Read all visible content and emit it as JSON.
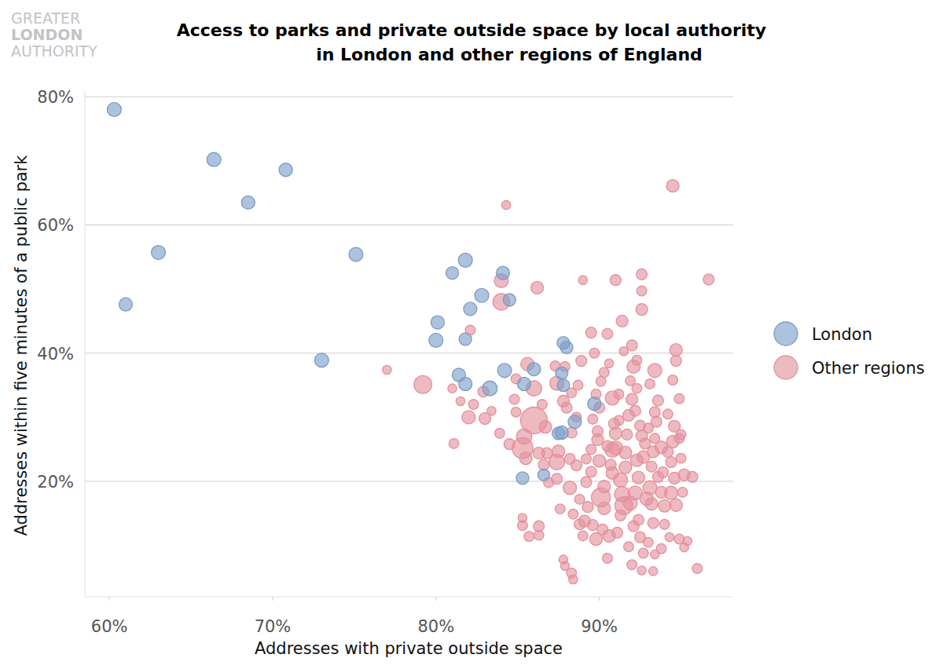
{
  "chart_data": {
    "type": "scatter",
    "logo": "GREATER\nLONDON\nAUTHORITY",
    "title": "Access to parks and private outside space by local authority\nin London and other regions of England",
    "x_label": "Addresses with private outside space",
    "y_label": "Addresses within five minutes of a public park",
    "xlim": [
      58.5,
      98.2
    ],
    "ylim": [
      2,
      81
    ],
    "xticks": [
      {
        "value": 60,
        "label": "60%"
      },
      {
        "value": 70,
        "label": "70%"
      },
      {
        "value": 80,
        "label": "80%"
      },
      {
        "value": 90,
        "label": "90%"
      }
    ],
    "yticks": [
      {
        "value": 20,
        "label": "20%"
      },
      {
        "value": 40,
        "label": "40%"
      },
      {
        "value": 60,
        "label": "60%"
      },
      {
        "value": 80,
        "label": "80%"
      }
    ],
    "grid": true,
    "legend": "right",
    "marker": "circle",
    "series": [
      {
        "name": "London",
        "color": "#7b9cc6",
        "x": [
          60.3,
          61,
          63,
          66.4,
          68.5,
          70.8,
          73,
          75.1,
          80,
          80.1,
          81,
          81.8,
          81.8,
          81.4,
          81.8,
          82.1,
          82.8,
          83.3,
          84.1,
          84.2,
          84.5,
          85.4,
          86,
          85.3,
          86.6,
          87.8,
          88,
          87.7,
          87.8,
          87.7,
          88.5,
          89.7,
          87.5
        ],
        "values": [
          78,
          47.6,
          55.7,
          70.2,
          63.5,
          68.6,
          38.9,
          55.4,
          42,
          44.8,
          52.5,
          54.5,
          42.2,
          36.6,
          35.2,
          46.9,
          49,
          34.5,
          52.5,
          37.3,
          48.3,
          35.2,
          37.5,
          20.5,
          21,
          41.6,
          40.9,
          36.9,
          35,
          27.6,
          29.3,
          32.1,
          27.5
        ],
        "sizes": [
          5,
          4.5,
          5,
          5,
          4.5,
          4.5,
          5,
          5,
          5,
          4.5,
          4,
          5,
          4,
          4.5,
          4.5,
          4.5,
          5,
          5.5,
          4.5,
          5,
          4,
          4.5,
          4.5,
          4,
          3.5,
          4,
          4,
          4,
          4,
          4.5,
          4.5,
          4.5,
          4
        ]
      },
      {
        "name": "Other regions",
        "color": "#e4909c",
        "x": [
          94.5,
          84.3,
          96.7,
          84,
          84,
          86.2,
          89,
          91,
          92.6,
          92.6,
          92.6,
          91.4,
          94.7,
          94.7,
          92,
          93.4,
          92.1,
          89.5,
          88.9,
          77,
          79.2,
          81,
          81.5,
          82.3,
          82,
          83,
          82.9,
          82.1,
          81.1,
          83.9,
          84.9,
          85.6,
          86,
          86,
          85.3,
          85.4,
          86.7,
          85.5,
          86.3,
          86.8,
          85.3,
          85.3,
          85.7,
          86.3,
          87.4,
          87.8,
          87.3,
          88,
          87.9,
          87.5,
          87.4,
          87.4,
          87.8,
          87.9,
          88.3,
          88.4,
          88.2,
          88.2,
          88.6,
          88.8,
          89.1,
          89,
          89.3,
          89.2,
          89.5,
          89.9,
          89.6,
          90,
          90.3,
          88.7,
          89.2,
          89.5,
          89.8,
          89.6,
          90.1,
          90.3,
          90.2,
          90.6,
          90.5,
          90.8,
          90.8,
          91,
          91,
          90.9,
          90.8,
          91.2,
          91.4,
          91.5,
          91.3,
          91.6,
          91.6,
          91.7,
          91.8,
          92,
          92.3,
          92.2,
          91.9,
          92.5,
          92.6,
          92.3,
          92.4,
          92.2,
          92.4,
          92.5,
          91.8,
          92,
          92.7,
          92.6,
          93,
          93.3,
          93.2,
          93.1,
          93.2,
          93.3,
          93.4,
          93.5,
          93.4,
          93.6,
          93.8,
          93.9,
          93.8,
          94,
          94,
          93.8,
          93.4,
          93.3,
          94.3,
          94.6,
          94.5,
          94.4,
          94.6,
          94.4,
          94.7,
          94.5,
          94.9,
          94.9,
          95,
          95.2,
          95.1,
          94.9,
          95.4,
          95.2,
          95.7,
          96,
          90.5,
          86.5,
          86.9,
          86.3,
          84.8,
          84.9,
          84.5,
          83.4,
          88.3,
          88.6,
          88.3,
          89.8,
          90.1,
          90.7,
          90.3,
          90.5,
          91.1,
          91.3,
          91.9,
          92.1,
          92.9,
          92.7,
          92.8,
          93,
          93.6,
          94.2,
          92.3,
          90.6,
          91.5,
          89.7,
          88.4,
          88.8,
          87.6,
          86.6,
          89.9,
          90,
          91.2,
          93.1,
          95,
          94.2
        ],
        "values": [
          66.1,
          63.1,
          51.5,
          51.3,
          48,
          50.2,
          51.4,
          51.4,
          52.3,
          49.7,
          46.8,
          45,
          40.5,
          38.8,
          41.2,
          37.3,
          37.9,
          43.2,
          38.8,
          37.4,
          35.1,
          34.5,
          32.5,
          32,
          30,
          29.8,
          34,
          43.6,
          25.9,
          27.5,
          36,
          38.3,
          34.5,
          29.5,
          25.2,
          27,
          28.5,
          23.6,
          24.4,
          24.4,
          14.3,
          13.1,
          11.4,
          13,
          35.3,
          32.5,
          38,
          31.5,
          37.9,
          24.7,
          23,
          20.4,
          7.8,
          6.8,
          5.7,
          4.7,
          19,
          23.5,
          22.5,
          13.3,
          13.8,
          11.5,
          16,
          19.9,
          25,
          26.5,
          29.7,
          31.5,
          37,
          35,
          23.5,
          21.5,
          11,
          13.2,
          17.5,
          15.8,
          12.5,
          11.5,
          8,
          21.3,
          24.9,
          25.2,
          27.5,
          29,
          33,
          29.5,
          18,
          16.2,
          20.2,
          22.2,
          24.5,
          27.3,
          30.3,
          32.8,
          34.5,
          31,
          35.7,
          28.7,
          27.1,
          23.3,
          20.6,
          18.2,
          14,
          11.3,
          9.8,
          7,
          8.8,
          6.1,
          10.5,
          13.5,
          16.5,
          19,
          22.3,
          24.6,
          26.7,
          29.3,
          30.8,
          32.6,
          25.3,
          21.4,
          18.3,
          16.2,
          13.3,
          9.5,
          8.6,
          6,
          11.3,
          28.6,
          26.2,
          23,
          20.5,
          18.2,
          16.3,
          35.8,
          32.9,
          26.7,
          23.6,
          21,
          18.3,
          11,
          10.7,
          9.7,
          20.7,
          6.4,
          43,
          32,
          19.8,
          11.6,
          32.8,
          30.8,
          25.8,
          31,
          27.6,
          30,
          33.8,
          33.6,
          35.6,
          22.6,
          19.2,
          25.5,
          12,
          14.7,
          16.6,
          13,
          17.3,
          23.8,
          25.9,
          28.3,
          20.7,
          24.6,
          38.9,
          38.4,
          40.3,
          40,
          14.9,
          17.2,
          15.7,
          22.6,
          27.8,
          23.2,
          33.6,
          35.2,
          27.3,
          30.5
        ],
        "sizes": [
          4,
          2,
          3,
          5,
          7,
          4,
          2,
          3,
          3,
          2.5,
          3.5,
          3.5,
          4,
          3,
          3,
          5,
          4.5,
          3,
          3,
          2,
          8,
          2,
          2,
          2.5,
          4.5,
          3.5,
          3,
          2.5,
          2.5,
          2.5,
          2.5,
          4.5,
          6,
          18,
          11,
          6,
          4,
          4,
          3.5,
          3,
          2,
          2.5,
          2.5,
          3,
          5,
          3.5,
          2.5,
          3,
          2.5,
          4,
          6,
          3,
          2,
          2,
          2.5,
          2,
          4.5,
          3,
          3,
          3,
          3.5,
          2.5,
          3,
          3,
          2.5,
          3.5,
          2.5,
          3,
          2.5,
          2.5,
          2.5,
          3,
          4,
          3,
          9,
          4,
          3,
          4,
          2.5,
          4,
          5.5,
          5,
          4,
          3,
          5,
          2.5,
          6,
          8,
          5,
          4,
          4,
          3,
          3.5,
          3.5,
          2.5,
          3,
          2.5,
          3,
          3.5,
          4,
          4,
          5,
          3,
          3,
          2.5,
          2.5,
          2.5,
          2,
          2.5,
          3,
          4,
          5,
          3,
          3.5,
          2.5,
          3,
          3,
          3,
          4,
          3,
          3.5,
          4,
          2.5,
          2.5,
          2,
          2,
          2,
          3.5,
          4,
          3,
          3.5,
          4.5,
          4,
          2.5,
          2.5,
          2.5,
          2.5,
          3.5,
          2.5,
          2.5,
          2,
          2,
          3,
          2.5,
          3,
          2.5,
          2.5,
          2.5,
          2.5,
          2.5,
          3,
          2,
          3,
          2.5,
          2.5,
          2.5,
          2.5,
          3,
          4,
          3,
          3,
          3,
          5,
          3,
          4.5,
          4,
          3,
          2.5,
          3,
          3,
          2.5,
          2,
          2,
          2.5,
          2.5,
          2.5,
          2.5,
          3,
          3,
          4,
          2.5,
          2.5,
          2.5,
          2.5
        ]
      }
    ]
  }
}
